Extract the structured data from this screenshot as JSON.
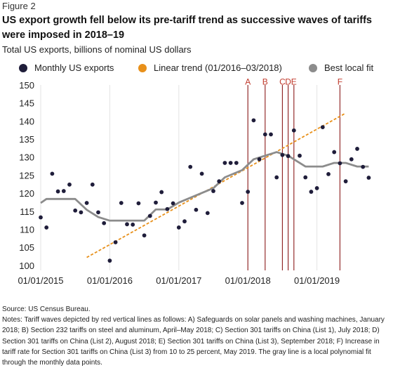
{
  "figure_label": "Figure 2",
  "title": "US export growth fell below its pre-tariff trend as successive waves of tariffs were imposed in 2018–19",
  "subtitle": "Total US exports, billions of nominal US dollars",
  "legend": [
    {
      "label": "Monthly US exports",
      "color": "#1f1d3a",
      "shape": "dot"
    },
    {
      "label": "Linear trend (01/2016–03/2018)",
      "color": "#e8901a",
      "shape": "dot"
    },
    {
      "label": "Best local fit",
      "color": "#8c8c8c",
      "shape": "dot"
    }
  ],
  "source": "Source: US Census Bureau.",
  "notes": "Notes: Tariff waves depicted by red vertical lines as follows: A) Safeguards on solar panels and washing machines, January 2018; B) Section 232 tariffs on steel and aluminum, April–May 2018; C) Section 301 tariffs on China (List 1), July 2018; D) Section 301 tariffs on China (List 2), August 2018; E) Section 301 tariffs on China (List 3), September 2018; F) Increase in tariff rate for Section 301 tariffs on China (List 3) from 10 to 25 percent, May 2019. The gray line is a local polynomial fit through the monthly data points.",
  "colors": {
    "points": "#1f1d3a",
    "trend": "#e8901a",
    "fit": "#8c8c8c",
    "tariff_lines": "#8b1a1a",
    "grid": "#e3e3e3"
  },
  "chart_data": {
    "type": "scatter",
    "x_ticks": [
      "01/01/2015",
      "01/01/2016",
      "01/01/2017",
      "01/01/2018",
      "01/01/2019"
    ],
    "y_ticks": [
      100,
      105,
      110,
      115,
      120,
      125,
      130,
      135,
      140,
      145,
      150
    ],
    "ylim": [
      99,
      150
    ],
    "xlim": [
      "2015-01",
      "2019-10"
    ],
    "grid": "vertical at year ticks",
    "series": [
      {
        "name": "Monthly US exports",
        "kind": "points",
        "x": [
          "2015-01",
          "2015-02",
          "2015-03",
          "2015-04",
          "2015-05",
          "2015-06",
          "2015-07",
          "2015-08",
          "2015-09",
          "2015-10",
          "2015-11",
          "2015-12",
          "2016-01",
          "2016-02",
          "2016-03",
          "2016-04",
          "2016-05",
          "2016-06",
          "2016-07",
          "2016-08",
          "2016-09",
          "2016-10",
          "2016-11",
          "2016-12",
          "2017-01",
          "2017-02",
          "2017-03",
          "2017-04",
          "2017-05",
          "2017-06",
          "2017-07",
          "2017-08",
          "2017-09",
          "2017-10",
          "2017-11",
          "2017-12",
          "2018-01",
          "2018-02",
          "2018-03",
          "2018-04",
          "2018-05",
          "2018-06",
          "2018-07",
          "2018-08",
          "2018-09",
          "2018-10",
          "2018-11",
          "2018-12",
          "2019-01",
          "2019-02",
          "2019-03",
          "2019-04",
          "2019-05",
          "2019-06",
          "2019-07",
          "2019-08",
          "2019-09",
          "2019-10"
        ],
        "values": [
          113.3,
          110.5,
          125.4,
          120.5,
          120.6,
          122.4,
          115.2,
          114.7,
          117.3,
          122.4,
          114.7,
          111.7,
          101.3,
          106.4,
          117.3,
          111.4,
          111.3,
          117.2,
          108.3,
          113.7,
          117.4,
          120.3,
          115.6,
          117.2,
          110.5,
          112.2,
          127.3,
          115.4,
          125.4,
          114.5,
          120.6,
          123.3,
          128.4,
          128.4,
          128.4,
          117.3,
          120.4,
          140.2,
          129.4,
          136.3,
          136.3,
          124.4,
          130.6,
          130.3,
          137.4,
          130.4,
          124.4,
          120.4,
          121.4,
          138.3,
          125.3,
          131.4,
          128.3,
          123.3,
          129.4,
          132.3,
          127.3,
          124.3
        ]
      },
      {
        "name": "Linear trend (01/2016–03/2018)",
        "kind": "line",
        "x": [
          "2015-09",
          "2019-06"
        ],
        "values": [
          102.2,
          142.2
        ]
      },
      {
        "name": "Best local fit",
        "kind": "line",
        "x": [
          "2015-01",
          "2015-02",
          "2015-04",
          "2015-07",
          "2015-09",
          "2015-11",
          "2016-01",
          "2016-04",
          "2016-07",
          "2016-09",
          "2016-11",
          "2017-01",
          "2017-04",
          "2017-07",
          "2017-09",
          "2017-12",
          "2018-02",
          "2018-04",
          "2018-06",
          "2018-08",
          "2018-09",
          "2018-10",
          "2018-11",
          "2018-12",
          "2019-02",
          "2019-04",
          "2019-06",
          "2019-08",
          "2019-10"
        ],
        "values": [
          117.3,
          118.4,
          118.4,
          118.4,
          115.4,
          113.4,
          112.4,
          112.4,
          112.4,
          115.5,
          115.5,
          117.4,
          119.4,
          121.4,
          124.4,
          126.4,
          129.4,
          130.4,
          131.4,
          130.4,
          129.4,
          128.4,
          127.4,
          127.4,
          127.4,
          128.4,
          128.4,
          127.4,
          127.4
        ]
      }
    ],
    "tariff_lines": [
      {
        "label": "A",
        "x": "2018-01"
      },
      {
        "label": "B",
        "x": "2018-04"
      },
      {
        "label": "C",
        "x": "2018-07"
      },
      {
        "label": "D",
        "x": "2018-08"
      },
      {
        "label": "E",
        "x": "2018-09"
      },
      {
        "label": "F",
        "x": "2019-05"
      }
    ]
  }
}
